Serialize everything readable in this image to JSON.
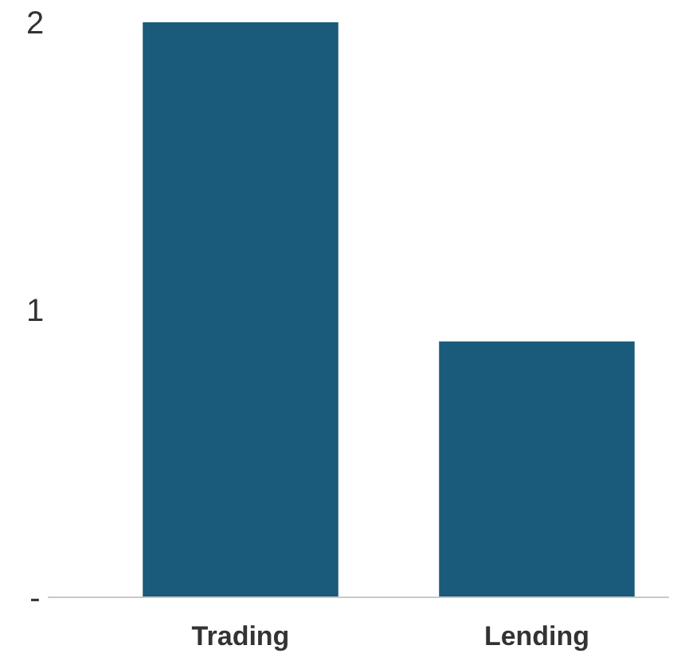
{
  "chart_data": {
    "type": "bar",
    "categories": [
      "Trading",
      "Lending"
    ],
    "values": [
      2,
      0.89
    ],
    "color": "#1a5a7a",
    "ylim": [
      0,
      2
    ],
    "yticks": [
      {
        "value": 0,
        "label": "-"
      },
      1,
      2
    ],
    "grid": false
  }
}
